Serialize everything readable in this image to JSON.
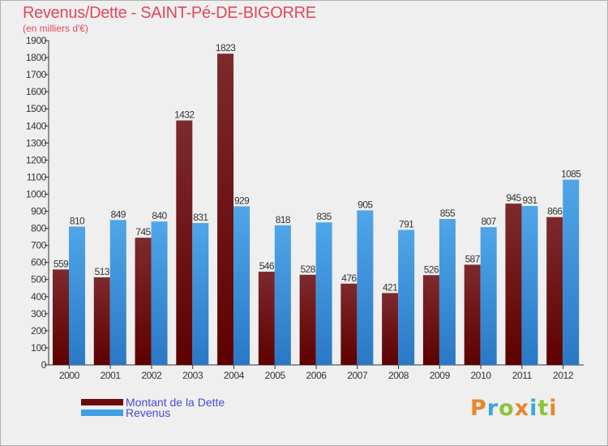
{
  "chart_data": {
    "type": "bar",
    "title": "Revenus/Dette - SAINT-Pé-DE-BIGORRE",
    "subtitle": "(en milliers d'€)",
    "categories": [
      "2000",
      "2001",
      "2002",
      "2003",
      "2004",
      "2005",
      "2006",
      "2007",
      "2008",
      "2009",
      "2010",
      "2011",
      "2012"
    ],
    "series": [
      {
        "name": "Montant de la Dette",
        "values": [
          559,
          513,
          745,
          1432,
          1823,
          546,
          528,
          476,
          421,
          526,
          587,
          945,
          866
        ],
        "color": "#7a1c1f"
      },
      {
        "name": "Revenus",
        "values": [
          810,
          849,
          840,
          831,
          929,
          818,
          835,
          905,
          791,
          855,
          807,
          931,
          1085
        ],
        "color": "#3f9ee6"
      }
    ],
    "ylim": [
      0,
      1900
    ],
    "yticks": [
      0,
      100,
      200,
      300,
      400,
      500,
      600,
      700,
      800,
      900,
      1000,
      1100,
      1200,
      1300,
      1400,
      1500,
      1600,
      1700,
      1800,
      1900
    ],
    "legend_position": "bottom-left",
    "grid": false
  },
  "branding": {
    "logo_text": "Proxiti",
    "letters": [
      "P",
      "r",
      "o",
      "x",
      "i",
      "t",
      "i"
    ],
    "letter_colors": [
      "#e8862c",
      "#3aa6dd",
      "#8cc43c",
      "#e8862c",
      "#3aa6dd",
      "#8cc43c",
      "#e8862c"
    ]
  }
}
